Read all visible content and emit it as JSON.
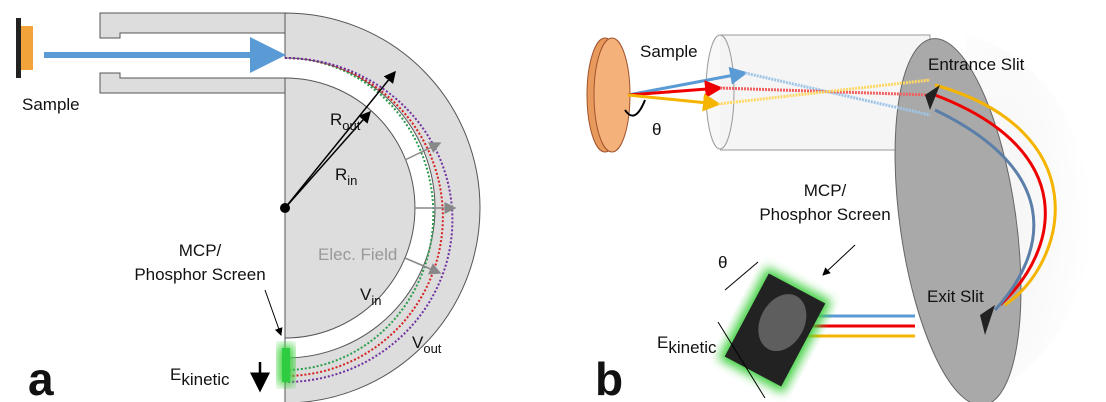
{
  "panel_a": {
    "label": "a",
    "sample": "Sample",
    "r_out": {
      "symbol": "R",
      "sub": "out"
    },
    "r_in": {
      "symbol": "R",
      "sub": "in"
    },
    "field": "Elec. Field",
    "v_in": {
      "symbol": "V",
      "sub": "in"
    },
    "v_out": {
      "symbol": "V",
      "sub": "out"
    },
    "detector": [
      "MCP/",
      "Phosphor Screen"
    ],
    "energy": {
      "symbol": "E",
      "sub": "kinetic"
    }
  },
  "panel_b": {
    "label": "b",
    "sample": "Sample",
    "angle": "θ",
    "entrance": "Entrance Slit",
    "exit": "Exit Slit",
    "detector": [
      "MCP/",
      "Phosphor Screen"
    ],
    "detector_angle": "θ",
    "energy": {
      "symbol": "E",
      "sub": "kinetic"
    }
  }
}
